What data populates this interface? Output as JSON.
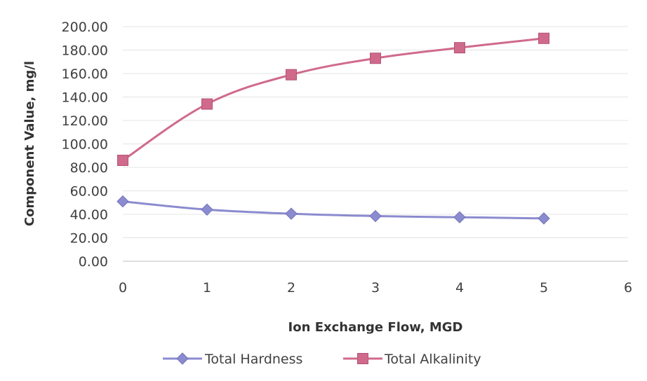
{
  "chart_data": {
    "type": "line",
    "xlabel": "Ion Exchange Flow, MGD",
    "ylabel": "Component Value, mg/l",
    "xlim": [
      0,
      6
    ],
    "ylim": [
      0,
      200
    ],
    "x_ticks": [
      "0",
      "1",
      "2",
      "3",
      "4",
      "5",
      "6"
    ],
    "y_ticks": [
      "0.00",
      "20.00",
      "40.00",
      "60.00",
      "80.00",
      "100.00",
      "120.00",
      "140.00",
      "160.00",
      "180.00",
      "200.00"
    ],
    "grid": true,
    "legend_position": "bottom",
    "series": [
      {
        "name": "Total Hardness",
        "marker": "diamond",
        "color": "#8b8bd0",
        "x": [
          0,
          1,
          2,
          3,
          4,
          5
        ],
        "y": [
          51,
          44,
          40.5,
          38.5,
          37.5,
          36.5
        ]
      },
      {
        "name": "Total Alkalinity",
        "marker": "square",
        "color": "#d06a8a",
        "x": [
          0,
          1,
          2,
          3,
          4,
          5
        ],
        "y": [
          86,
          134,
          159,
          173,
          182,
          190
        ]
      }
    ]
  }
}
